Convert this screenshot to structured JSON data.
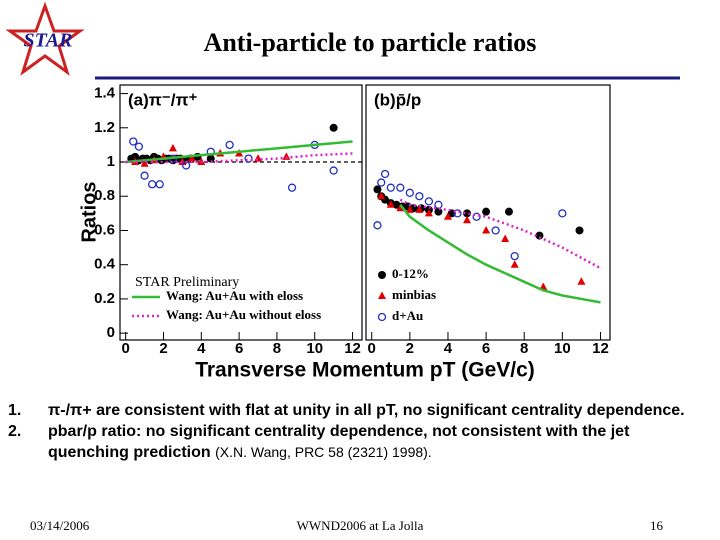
{
  "header": {
    "logo": "STAR",
    "title": "Anti-particle to particle ratios"
  },
  "axis_titles": {
    "y": "Ratios",
    "x": "Transverse Momentum pT (GeV/c)"
  },
  "chart_data": [
    {
      "type": "scatter",
      "title": "(a)π⁻/π⁺",
      "annotation": "STAR Preliminary",
      "legend": "lower left",
      "xlim": [
        -0.3,
        12.5
      ],
      "xticks": [
        0,
        2,
        4,
        6,
        8,
        10,
        12
      ],
      "ylim": [
        -0.04,
        1.45
      ],
      "yticks": [
        0,
        0.2,
        0.4,
        0.6,
        0.8,
        1,
        1.2,
        1.4
      ],
      "reference_line": 1,
      "series": [
        {
          "color": "#000000",
          "marker": "filled-circle",
          "x": [
            0.3,
            0.5,
            0.7,
            0.9,
            1.1,
            1.3,
            1.5,
            1.7,
            1.9,
            2.1,
            2.3,
            2.5,
            2.7,
            2.9,
            3.1,
            3.4,
            3.8,
            4.5,
            11
          ],
          "values": [
            1.02,
            1.03,
            1.01,
            1.02,
            1.02,
            1.01,
            1.03,
            1.02,
            1.01,
            1.02,
            1.02,
            1.01,
            1.02,
            1.02,
            1.01,
            1.02,
            1.03,
            1.02,
            1.2
          ]
        },
        {
          "color": "#e00000",
          "marker": "triangle",
          "x": [
            0.5,
            1,
            1.5,
            2,
            2.5,
            3,
            3.5,
            4,
            5,
            6,
            7,
            8.5
          ],
          "values": [
            1.0,
            0.99,
            1.01,
            1.03,
            1.08,
            1.0,
            1.02,
            1.0,
            1.05,
            1.05,
            1.02,
            1.03
          ]
        },
        {
          "color": "#2030c0",
          "marker": "open-circle",
          "x": [
            0.4,
            0.7,
            1.0,
            1.4,
            1.8,
            2.5,
            3.2,
            4.5,
            5.5,
            6.5,
            8.8,
            10,
            11
          ],
          "values": [
            1.12,
            1.09,
            0.92,
            0.87,
            0.87,
            1.02,
            0.98,
            1.06,
            1.1,
            1.02,
            0.85,
            1.1,
            0.95
          ]
        },
        {
          "name": "Wang: Au+Au with eloss",
          "color": "#33bb33",
          "marker": "line",
          "x": [
            0,
            2,
            4,
            6,
            8,
            10,
            12
          ],
          "values": [
            1.0,
            1.02,
            1.04,
            1.06,
            1.08,
            1.1,
            1.12
          ]
        },
        {
          "name": "Wang: Au+Au without eloss",
          "color": "#dd22cc",
          "marker": "dotted-line",
          "x": [
            0,
            2,
            4,
            6,
            8,
            10,
            12
          ],
          "values": [
            1.0,
            1.0,
            1.0,
            1.01,
            1.02,
            1.04,
            1.05
          ]
        }
      ]
    },
    {
      "type": "scatter",
      "title": "(b)p̄/p",
      "legend": "lower left",
      "xlim": [
        -0.3,
        12.5
      ],
      "xticks": [
        0,
        2,
        4,
        6,
        8,
        10,
        12
      ],
      "ylim": [
        -0.04,
        1.45
      ],
      "series": [
        {
          "name": "0-12%",
          "color": "#000000",
          "marker": "filled-circle",
          "x": [
            0.3,
            0.5,
            0.7,
            1,
            1.3,
            1.6,
            1.9,
            2.2,
            2.6,
            3,
            3.5,
            4.2,
            5,
            6,
            7.2,
            8.8,
            10.9
          ],
          "values": [
            0.84,
            0.8,
            0.78,
            0.76,
            0.75,
            0.74,
            0.74,
            0.73,
            0.73,
            0.72,
            0.71,
            0.7,
            0.7,
            0.71,
            0.71,
            0.57,
            0.6
          ]
        },
        {
          "name": "minbias",
          "color": "#e00000",
          "marker": "triangle",
          "x": [
            0.5,
            1,
            1.5,
            2,
            2.5,
            3,
            4,
            5,
            6,
            7,
            7.5,
            9,
            11
          ],
          "values": [
            0.8,
            0.75,
            0.73,
            0.72,
            0.72,
            0.7,
            0.68,
            0.66,
            0.6,
            0.55,
            0.4,
            0.27,
            0.3
          ]
        },
        {
          "name": "d+Au",
          "color": "#2030c0",
          "marker": "open-circle",
          "x": [
            0.3,
            0.5,
            0.7,
            1,
            1.5,
            2,
            2.5,
            3,
            3.5,
            4.5,
            5.5,
            6.5,
            7.5,
            10
          ],
          "values": [
            0.63,
            0.88,
            0.93,
            0.85,
            0.85,
            0.82,
            0.8,
            0.77,
            0.75,
            0.7,
            0.68,
            0.6,
            0.45,
            0.7
          ]
        },
        {
          "color": "#33bb33",
          "marker": "line",
          "x": [
            1.5,
            2,
            3,
            4,
            5,
            6,
            7,
            8,
            9,
            10,
            11,
            12
          ],
          "values": [
            0.75,
            0.68,
            0.6,
            0.53,
            0.46,
            0.4,
            0.35,
            0.3,
            0.25,
            0.22,
            0.2,
            0.18
          ]
        },
        {
          "color": "#dd22cc",
          "marker": "dotted-line",
          "x": [
            1.5,
            2,
            4,
            6,
            8,
            10,
            12
          ],
          "values": [
            0.78,
            0.75,
            0.72,
            0.68,
            0.6,
            0.5,
            0.38
          ]
        }
      ]
    }
  ],
  "bullets": [
    {
      "number": "1.",
      "text": "π-/π+ are consistent with flat at unity in all pT, no significant centrality dependence."
    },
    {
      "number": "2.",
      "text": "pbar/p ratio: no significant centrality dependence, not consistent with the jet quenching prediction",
      "reference": "(X.N. Wang, PRC 58 (2321) 1998)."
    }
  ],
  "footer": {
    "date": "03/14/2006",
    "event": "WWND2006 at La Jolla",
    "page": "16"
  }
}
